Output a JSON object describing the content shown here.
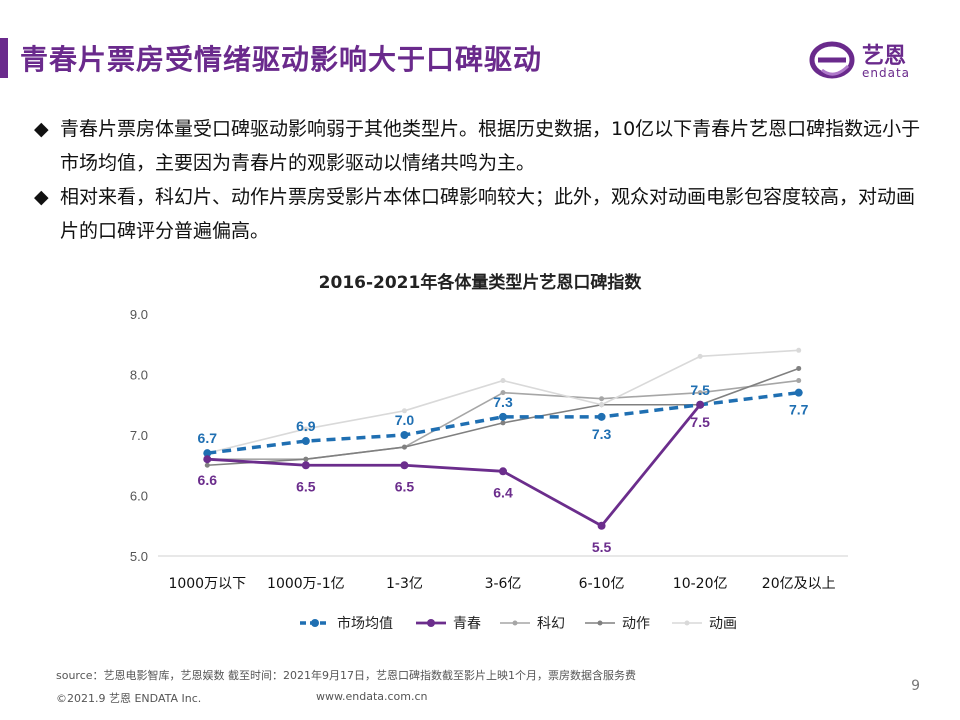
{
  "header": {
    "title": "青春片票房受情绪驱动影响大于口碑驱动"
  },
  "logo": {
    "name_cn": "艺恩",
    "name_en": "endata"
  },
  "bullets": [
    {
      "mark": "◆",
      "text": "青春片票房体量受口碑驱动影响弱于其他类型片。根据历史数据，10亿以下青春片艺恩口碑指数远小于市场均值，主要因为青春片的观影驱动以情绪共鸣为主。"
    },
    {
      "mark": "◆",
      "text": "相对来看，科幻片、动作片票房受影片本体口碑影响较大；此外，观众对动画电影包容度较高，对动画片的口碑评分普遍偏高。"
    }
  ],
  "chart_data": {
    "type": "line",
    "title": "2016-2021年各体量类型片艺恩口碑指数",
    "categories": [
      "1000万以下",
      "1000万-1亿",
      "1-3亿",
      "3-6亿",
      "6-10亿",
      "10-20亿",
      "20亿及以上"
    ],
    "ylim": [
      5.0,
      9.0
    ],
    "yticks": [
      "5.0",
      "6.0",
      "7.0",
      "8.0",
      "9.0"
    ],
    "legend_position": "bottom",
    "series": [
      {
        "name": "市场均值",
        "color": "#1f6fb2",
        "values": [
          6.7,
          6.9,
          7.0,
          7.3,
          7.3,
          7.5,
          7.7
        ],
        "labels": [
          "6.7",
          "6.9",
          "7.0",
          "7.3",
          "7.3",
          "7.5",
          "7.7"
        ]
      },
      {
        "name": "青春",
        "color": "#6b2d8c",
        "values": [
          6.6,
          6.5,
          6.5,
          6.4,
          5.5,
          7.5,
          null
        ],
        "labels": [
          "6.6",
          "6.5",
          "6.5",
          "6.4",
          "5.5",
          "7.5",
          ""
        ]
      },
      {
        "name": "科幻",
        "color": "#a6a6a6",
        "values": [
          6.6,
          6.6,
          6.8,
          7.7,
          7.6,
          7.7,
          7.9
        ],
        "labels": []
      },
      {
        "name": "动作",
        "color": "#808080",
        "values": [
          6.5,
          6.6,
          6.8,
          7.2,
          7.5,
          7.5,
          8.1
        ],
        "labels": []
      },
      {
        "name": "动画",
        "color": "#d9d9d9",
        "values": [
          6.7,
          7.1,
          7.4,
          7.9,
          7.5,
          8.3,
          8.4
        ],
        "labels": []
      }
    ]
  },
  "footer": {
    "source": "source：艺恩电影智库，艺恩娱数      截至时间：2021年9月17日，艺恩口碑指数截至影片上映1个月，票房数据含服务费",
    "copyright": "©2021.9 艺恩 ENDATA Inc.",
    "url": "www.endata.com.cn",
    "page": "9"
  }
}
